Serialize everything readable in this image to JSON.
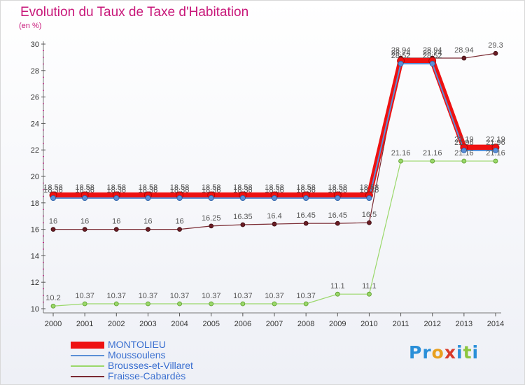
{
  "chart_data": {
    "type": "line",
    "title": "Evolution du Taux de Taxe d'Habitation",
    "ylabel": "(en %)",
    "xlabel": "",
    "x": [
      "2000",
      "2001",
      "2002",
      "2003",
      "2004",
      "2005",
      "2006",
      "2007",
      "2008",
      "2009",
      "2010",
      "2011",
      "2012",
      "2013",
      "2014"
    ],
    "ylim": [
      10,
      30
    ],
    "yticks": [
      10,
      12,
      14,
      16,
      18,
      20,
      22,
      24,
      26,
      28,
      30
    ],
    "grid": false,
    "legend_position": "bottom-left",
    "series": [
      {
        "name": "MONTOLIEU",
        "color": "#ee1111",
        "values": [
          18.58,
          18.58,
          18.58,
          18.58,
          18.58,
          18.58,
          18.58,
          18.58,
          18.58,
          18.58,
          18.58,
          28.74,
          28.74,
          22.19,
          22.19
        ],
        "labels": [
          "18.58",
          "18.58",
          "18.58",
          "18.58",
          "18.58",
          "18.58",
          "18.58",
          "18.58",
          "18.58",
          "18.58",
          "18.58",
          "28.74",
          "28.74",
          "22.19",
          "22.19"
        ]
      },
      {
        "name": "Moussoulens",
        "color": "#5b8fd6",
        "values": [
          18.36,
          18.36,
          18.36,
          18.36,
          18.36,
          18.36,
          18.36,
          18.36,
          18.36,
          18.36,
          18.36,
          28.52,
          28.52,
          21.96,
          21.96
        ],
        "labels": [
          "18.36",
          "18.36",
          "18.36",
          "18.36",
          "18.36",
          "18.36",
          "18.36",
          "18.36",
          "18.36",
          "18.36",
          "18.36",
          "28.52",
          "28.52",
          "21.96",
          "21.96"
        ]
      },
      {
        "name": "Brousses-et-Villaret",
        "color": "#9ad86a",
        "values": [
          10.2,
          10.37,
          10.37,
          10.37,
          10.37,
          10.37,
          10.37,
          10.37,
          10.37,
          11.1,
          11.1,
          21.16,
          21.16,
          21.16,
          21.16
        ],
        "labels": [
          "10.2",
          "10.37",
          "10.37",
          "10.37",
          "10.37",
          "10.37",
          "10.37",
          "10.37",
          "10.37",
          "11.1",
          "11.1",
          "21.16",
          "21.16",
          "21.16",
          "21.16"
        ]
      },
      {
        "name": "Fraisse-Cabardès",
        "color": "#7a2a32",
        "values": [
          16,
          16,
          16,
          16,
          16,
          16.25,
          16.35,
          16.4,
          16.45,
          16.45,
          16.5,
          28.94,
          28.94,
          28.94,
          29.3
        ],
        "labels": [
          "16",
          "16",
          "16",
          "16",
          "16",
          "16.25",
          "16.35",
          "16.4",
          "16.45",
          "16.45",
          "16.5",
          "28.94",
          "28.94",
          "28.94",
          "29.3"
        ]
      }
    ]
  },
  "brand": {
    "letters": [
      "P",
      "r",
      "o",
      "x",
      "i",
      "t",
      "i"
    ],
    "colors": [
      "#2a8fd8",
      "#2a8fd8",
      "#e8a020",
      "#d83a2a",
      "#2a8fd8",
      "#8cc63f",
      "#2a8fd8"
    ]
  }
}
